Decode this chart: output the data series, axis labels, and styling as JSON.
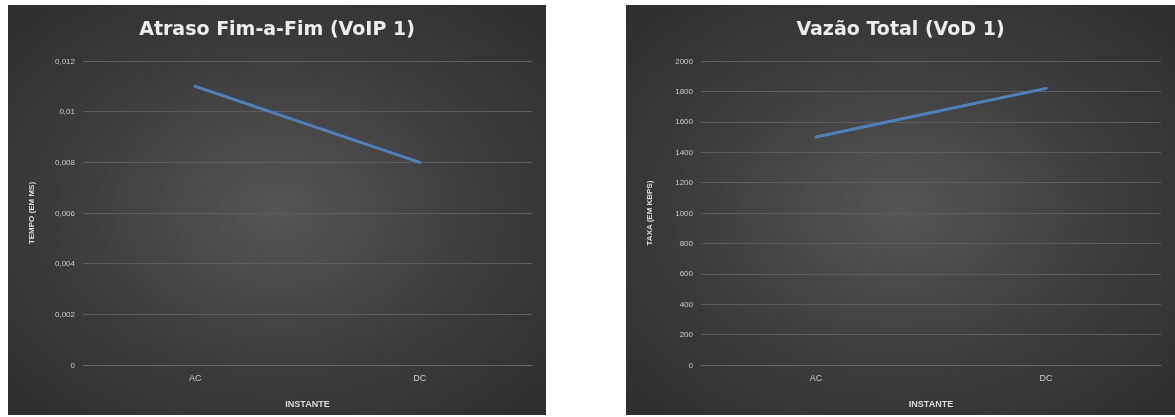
{
  "chart_data": [
    {
      "type": "line",
      "title": "Atraso Fim-a-Fim (VoIP 1)",
      "xlabel": "INSTANTE",
      "ylabel": "TEMPO (EM MS)",
      "categories": [
        "AC",
        "DC"
      ],
      "series": [
        {
          "color": "#4f81bd",
          "values": [
            0.011,
            0.008
          ]
        }
      ],
      "ylim": [
        0,
        0.012
      ],
      "yticks": [
        0,
        {
          "value": 0.002,
          "label": "0,002"
        },
        {
          "value": 0.004,
          "label": "0,004"
        },
        {
          "value": 0.006,
          "label": "0,006"
        },
        {
          "value": 0.008,
          "label": "0,008"
        },
        {
          "value": 0.01,
          "label": "0,01"
        },
        {
          "value": 0.012,
          "label": "0,012"
        }
      ],
      "grid": "y",
      "marker": "none",
      "line_style": "solid"
    },
    {
      "type": "line",
      "title": "Vazão Total (VoD 1)",
      "xlabel": "INSTANTE",
      "ylabel": "TAXA (EM KBPS)",
      "categories": [
        "AC",
        "DC"
      ],
      "series": [
        {
          "color": "#4f81bd",
          "values": [
            1500,
            1820
          ]
        }
      ],
      "ylim": [
        0,
        2000
      ],
      "yticks": [
        0,
        200,
        400,
        600,
        800,
        1000,
        1200,
        1400,
        1600,
        1800,
        2000
      ],
      "grid": "y",
      "marker": "none",
      "line_style": "solid"
    }
  ]
}
